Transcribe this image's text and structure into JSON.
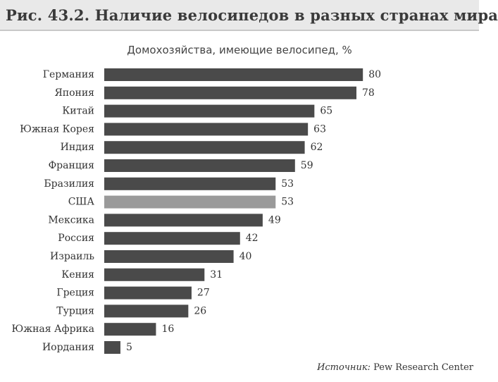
{
  "figure_title": "Рис. 43.2. Наличие велосипедов в разных странах мира",
  "source": {
    "label": "Источник:",
    "text": "Pew Research Center"
  },
  "colors": {
    "bar": "#4a4a4a",
    "bar_highlight": "#9a9a9a",
    "title_background": "#e9e9e9"
  },
  "chart_data": {
    "type": "bar",
    "orientation": "horizontal",
    "title": "Домохозяйства, имеющие велосипед, %",
    "xlabel": "",
    "ylabel": "",
    "xlim": [
      0,
      100
    ],
    "grid": false,
    "categories": [
      "Германия",
      "Япония",
      "Китай",
      "Южная Корея",
      "Индия",
      "Франция",
      "Бразилия",
      "США",
      "Мексика",
      "Россия",
      "Израиль",
      "Кения",
      "Греция",
      "Турция",
      "Южная Африка",
      "Иордания"
    ],
    "values": [
      80,
      78,
      65,
      63,
      62,
      59,
      53,
      53,
      49,
      42,
      40,
      31,
      27,
      26,
      16,
      5
    ],
    "highlighted_category": "США"
  }
}
